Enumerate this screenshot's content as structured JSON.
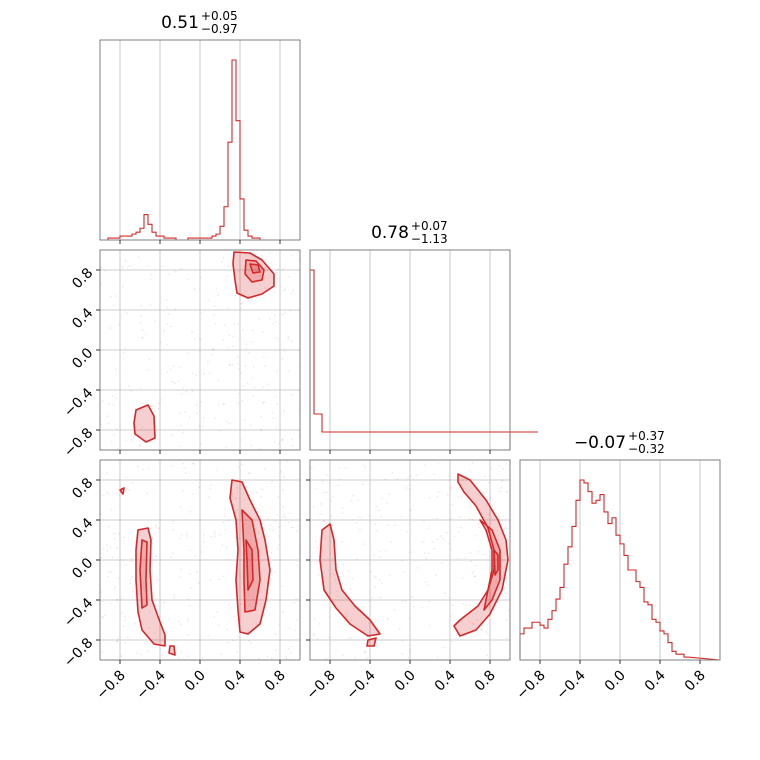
{
  "chart_data": {
    "type": "corner",
    "color": "#d62728",
    "range": [
      -1,
      1
    ],
    "ticks": [
      -0.8,
      -0.4,
      0.0,
      0.4,
      0.8
    ],
    "tick_labels": [
      "−0.8",
      "−0.4",
      "0.0",
      "0.4",
      "0.8"
    ],
    "titles": [
      {
        "value": "0.51",
        "plus": "+0.05",
        "minus": "−0.97"
      },
      {
        "value": "0.78",
        "plus": "+0.07",
        "minus": "−1.13"
      },
      {
        "value": "−0.07",
        "plus": "+0.37",
        "minus": "−0.32"
      }
    ],
    "histograms": [
      {
        "bin_width": 0.04,
        "counts": [
          0,
          0,
          1,
          1,
          1,
          2,
          2,
          2,
          3,
          4,
          6,
          13,
          8,
          4,
          2,
          2,
          1,
          1,
          1,
          0,
          0,
          0,
          1,
          1,
          1,
          1,
          1,
          1,
          2,
          3,
          7,
          17,
          50,
          92,
          61,
          21,
          5,
          2,
          1,
          1,
          0,
          0
        ]
      },
      {
        "bin_width": 0.04,
        "counts": [
          10,
          2,
          2,
          1,
          1,
          1,
          1,
          1,
          1,
          1,
          1,
          1,
          1,
          1,
          1,
          1,
          1,
          1,
          1,
          1,
          1,
          1,
          1,
          1,
          1,
          1,
          1,
          1,
          1,
          1,
          1,
          1,
          1,
          1,
          1,
          1,
          1,
          1,
          1,
          1,
          1,
          1,
          1,
          1,
          1,
          1,
          1,
          1,
          1,
          1,
          1,
          1,
          1,
          1,
          1,
          1,
          1,
          1
        ]
      },
      {
        "bin_width": 0.04,
        "counts": [
          9,
          11,
          11,
          13,
          13,
          12,
          11,
          14,
          17,
          21,
          25,
          33,
          39,
          46,
          55,
          62,
          61,
          58,
          54,
          55,
          57,
          51,
          47,
          49,
          43,
          40,
          36,
          31,
          31,
          27,
          25,
          20,
          19,
          14,
          13,
          10,
          9,
          6,
          3,
          2,
          2,
          1
        ]
      }
    ],
    "pairs": [
      {
        "row": 1,
        "col": 0,
        "contours": [
          [
            [
              0.34,
              0.98
            ],
            [
              0.5,
              0.97
            ],
            [
              0.62,
              0.9
            ],
            [
              0.74,
              0.76
            ],
            [
              0.74,
              0.64
            ],
            [
              0.62,
              0.56
            ],
            [
              0.48,
              0.52
            ],
            [
              0.37,
              0.57
            ],
            [
              0.35,
              0.7
            ],
            [
              0.33,
              0.86
            ]
          ],
          [
            [
              0.46,
              0.9
            ],
            [
              0.56,
              0.89
            ],
            [
              0.64,
              0.8
            ],
            [
              0.62,
              0.7
            ],
            [
              0.52,
              0.68
            ],
            [
              0.45,
              0.76
            ]
          ],
          [
            [
              0.5,
              0.86
            ],
            [
              0.58,
              0.85
            ],
            [
              0.6,
              0.78
            ],
            [
              0.53,
              0.77
            ]
          ],
          [
            [
              -0.64,
              -0.6
            ],
            [
              -0.52,
              -0.55
            ],
            [
              -0.46,
              -0.66
            ],
            [
              -0.45,
              -0.88
            ],
            [
              -0.54,
              -0.92
            ],
            [
              -0.65,
              -0.84
            ],
            [
              -0.66,
              -0.73
            ]
          ]
        ]
      },
      {
        "row": 2,
        "col": 0,
        "contours": [
          [
            [
              -0.62,
              0.3
            ],
            [
              -0.52,
              0.32
            ],
            [
              -0.49,
              0.2
            ],
            [
              -0.5,
              -0.1
            ],
            [
              -0.48,
              -0.4
            ],
            [
              -0.4,
              -0.62
            ],
            [
              -0.35,
              -0.75
            ],
            [
              -0.35,
              -0.86
            ],
            [
              -0.46,
              -0.84
            ],
            [
              -0.58,
              -0.7
            ],
            [
              -0.62,
              -0.52
            ],
            [
              -0.64,
              -0.2
            ],
            [
              -0.64,
              0.1
            ]
          ],
          [
            [
              -0.58,
              0.2
            ],
            [
              -0.53,
              0.18
            ],
            [
              -0.54,
              -0.2
            ],
            [
              -0.53,
              -0.45
            ],
            [
              -0.58,
              -0.48
            ],
            [
              -0.6,
              -0.1
            ]
          ],
          [
            [
              0.32,
              0.8
            ],
            [
              0.42,
              0.78
            ],
            [
              0.5,
              0.6
            ],
            [
              0.6,
              0.4
            ],
            [
              0.65,
              0.2
            ],
            [
              0.7,
              -0.1
            ],
            [
              0.66,
              -0.4
            ],
            [
              0.6,
              -0.64
            ],
            [
              0.48,
              -0.74
            ],
            [
              0.4,
              -0.72
            ],
            [
              0.38,
              -0.5
            ],
            [
              0.36,
              -0.2
            ],
            [
              0.38,
              0.1
            ],
            [
              0.36,
              0.4
            ],
            [
              0.3,
              0.62
            ]
          ],
          [
            [
              0.42,
              0.5
            ],
            [
              0.52,
              0.4
            ],
            [
              0.58,
              0.1
            ],
            [
              0.6,
              -0.2
            ],
            [
              0.55,
              -0.5
            ],
            [
              0.45,
              -0.52
            ],
            [
              0.44,
              -0.2
            ],
            [
              0.44,
              0.1
            ]
          ],
          [
            [
              0.46,
              0.2
            ],
            [
              0.52,
              0.1
            ],
            [
              0.53,
              -0.2
            ],
            [
              0.48,
              -0.3
            ],
            [
              0.47,
              0.0
            ]
          ],
          [
            [
              -0.3,
              -0.86
            ],
            [
              -0.26,
              -0.86
            ],
            [
              -0.25,
              -0.95
            ],
            [
              -0.31,
              -0.93
            ]
          ],
          [
            [
              -0.8,
              0.7
            ],
            [
              -0.76,
              0.72
            ],
            [
              -0.77,
              0.66
            ]
          ]
        ]
      },
      {
        "row": 2,
        "col": 1,
        "contours": [
          [
            [
              -0.88,
              0.3
            ],
            [
              -0.8,
              0.36
            ],
            [
              -0.76,
              0.2
            ],
            [
              -0.74,
              -0.1
            ],
            [
              -0.68,
              -0.3
            ],
            [
              -0.55,
              -0.46
            ],
            [
              -0.4,
              -0.6
            ],
            [
              -0.3,
              -0.74
            ],
            [
              -0.42,
              -0.76
            ],
            [
              -0.6,
              -0.64
            ],
            [
              -0.74,
              -0.48
            ],
            [
              -0.86,
              -0.3
            ],
            [
              -0.9,
              0.0
            ]
          ],
          [
            [
              0.48,
              0.86
            ],
            [
              0.6,
              0.8
            ],
            [
              0.76,
              0.6
            ],
            [
              0.88,
              0.4
            ],
            [
              0.96,
              0.2
            ],
            [
              0.98,
              0.0
            ],
            [
              0.92,
              -0.3
            ],
            [
              0.8,
              -0.54
            ],
            [
              0.66,
              -0.7
            ],
            [
              0.5,
              -0.76
            ],
            [
              0.44,
              -0.66
            ],
            [
              0.5,
              -0.6
            ],
            [
              0.68,
              -0.46
            ],
            [
              0.78,
              -0.3
            ],
            [
              0.84,
              -0.1
            ],
            [
              0.84,
              0.1
            ],
            [
              0.78,
              0.32
            ],
            [
              0.66,
              0.54
            ],
            [
              0.54,
              0.68
            ],
            [
              0.48,
              0.78
            ]
          ],
          [
            [
              0.7,
              0.4
            ],
            [
              0.82,
              0.3
            ],
            [
              0.9,
              0.1
            ],
            [
              0.9,
              -0.2
            ],
            [
              0.82,
              -0.4
            ],
            [
              0.74,
              -0.5
            ],
            [
              0.78,
              -0.3
            ],
            [
              0.82,
              -0.1
            ],
            [
              0.82,
              0.1
            ],
            [
              0.76,
              0.3
            ]
          ],
          [
            [
              0.84,
              0.1
            ],
            [
              0.88,
              0.05
            ],
            [
              0.88,
              -0.1
            ],
            [
              0.85,
              -0.15
            ]
          ],
          [
            [
              -0.42,
              -0.8
            ],
            [
              -0.34,
              -0.78
            ],
            [
              -0.36,
              -0.86
            ],
            [
              -0.43,
              -0.86
            ]
          ]
        ]
      }
    ]
  }
}
